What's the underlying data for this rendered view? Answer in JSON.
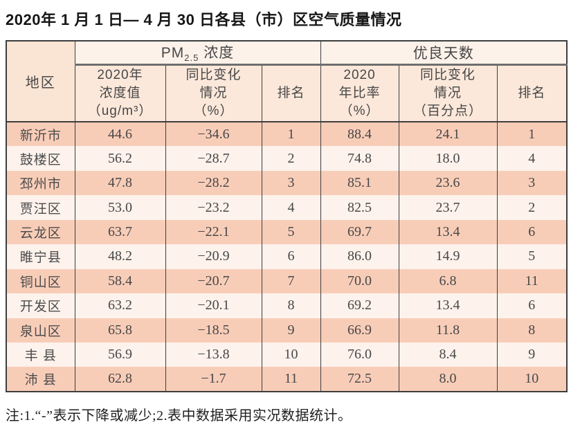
{
  "page": {
    "title": "2020年 1 月 1 日— 4 月 30 日各县（市）区空气质量情况",
    "note": "注:1.“-”表示下降或减少;2.表中数据采用实况数据统计。"
  },
  "colors": {
    "row_odd": "#f8cdb8",
    "row_even": "#fdf2ec",
    "header_group_bg": "#fdf2ea",
    "header_sub_bg": "#fbe8da",
    "header_region_bg": "#fae4d4",
    "border": "#3d3d3d"
  },
  "chart_data": {
    "type": "table",
    "title": "2020年 1 月 1 日— 4 月 30 日各县（市）区空气质量情况",
    "header": {
      "region": "地区",
      "pm_group": {
        "base": "PM",
        "sub": "2.5",
        "rest": " 浓度"
      },
      "good_group": "优良天数",
      "sub_columns": [
        "2020年\n浓度值\n（ug/m³）",
        "同比变化\n情况\n（%）",
        "排名",
        "2020\n年比率\n（%）",
        "同比变化\n情况\n（百分点）",
        "排名"
      ]
    },
    "rows": [
      {
        "region": "新沂市",
        "pm_value": "44.6",
        "pm_change": "−34.6",
        "pm_rank": "1",
        "good_rate": "88.4",
        "good_change": "24.1",
        "good_rank": "1"
      },
      {
        "region": "鼓楼区",
        "pm_value": "56.2",
        "pm_change": "−28.7",
        "pm_rank": "2",
        "good_rate": "74.8",
        "good_change": "18.0",
        "good_rank": "4"
      },
      {
        "region": "邳州市",
        "pm_value": "47.8",
        "pm_change": "−28.2",
        "pm_rank": "3",
        "good_rate": "85.1",
        "good_change": "23.6",
        "good_rank": "3"
      },
      {
        "region": "贾汪区",
        "pm_value": "53.0",
        "pm_change": "−23.2",
        "pm_rank": "4",
        "good_rate": "82.5",
        "good_change": "23.7",
        "good_rank": "2"
      },
      {
        "region": "云龙区",
        "pm_value": "63.7",
        "pm_change": "−22.1",
        "pm_rank": "5",
        "good_rate": "69.7",
        "good_change": "13.4",
        "good_rank": "6"
      },
      {
        "region": "睢宁县",
        "pm_value": "48.2",
        "pm_change": "−20.9",
        "pm_rank": "6",
        "good_rate": "86.0",
        "good_change": "14.9",
        "good_rank": "5"
      },
      {
        "region": "铜山区",
        "pm_value": "58.4",
        "pm_change": "−20.7",
        "pm_rank": "7",
        "good_rate": "70.0",
        "good_change": "6.8",
        "good_rank": "11"
      },
      {
        "region": "开发区",
        "pm_value": "63.2",
        "pm_change": "−20.1",
        "pm_rank": "8",
        "good_rate": "69.2",
        "good_change": "13.4",
        "good_rank": "6"
      },
      {
        "region": "泉山区",
        "pm_value": "65.8",
        "pm_change": "−18.5",
        "pm_rank": "9",
        "good_rate": "66.9",
        "good_change": "11.8",
        "good_rank": "8"
      },
      {
        "region": "丰 县",
        "pm_value": "56.9",
        "pm_change": "−13.8",
        "pm_rank": "10",
        "good_rate": "76.0",
        "good_change": "8.4",
        "good_rank": "9"
      },
      {
        "region": "沛 县",
        "pm_value": "62.8",
        "pm_change": "−1.7",
        "pm_rank": "11",
        "good_rate": "72.5",
        "good_change": "8.0",
        "good_rank": "10"
      }
    ],
    "note": "注:1.“-”表示下降或减少;2.表中数据采用实况数据统计。"
  }
}
